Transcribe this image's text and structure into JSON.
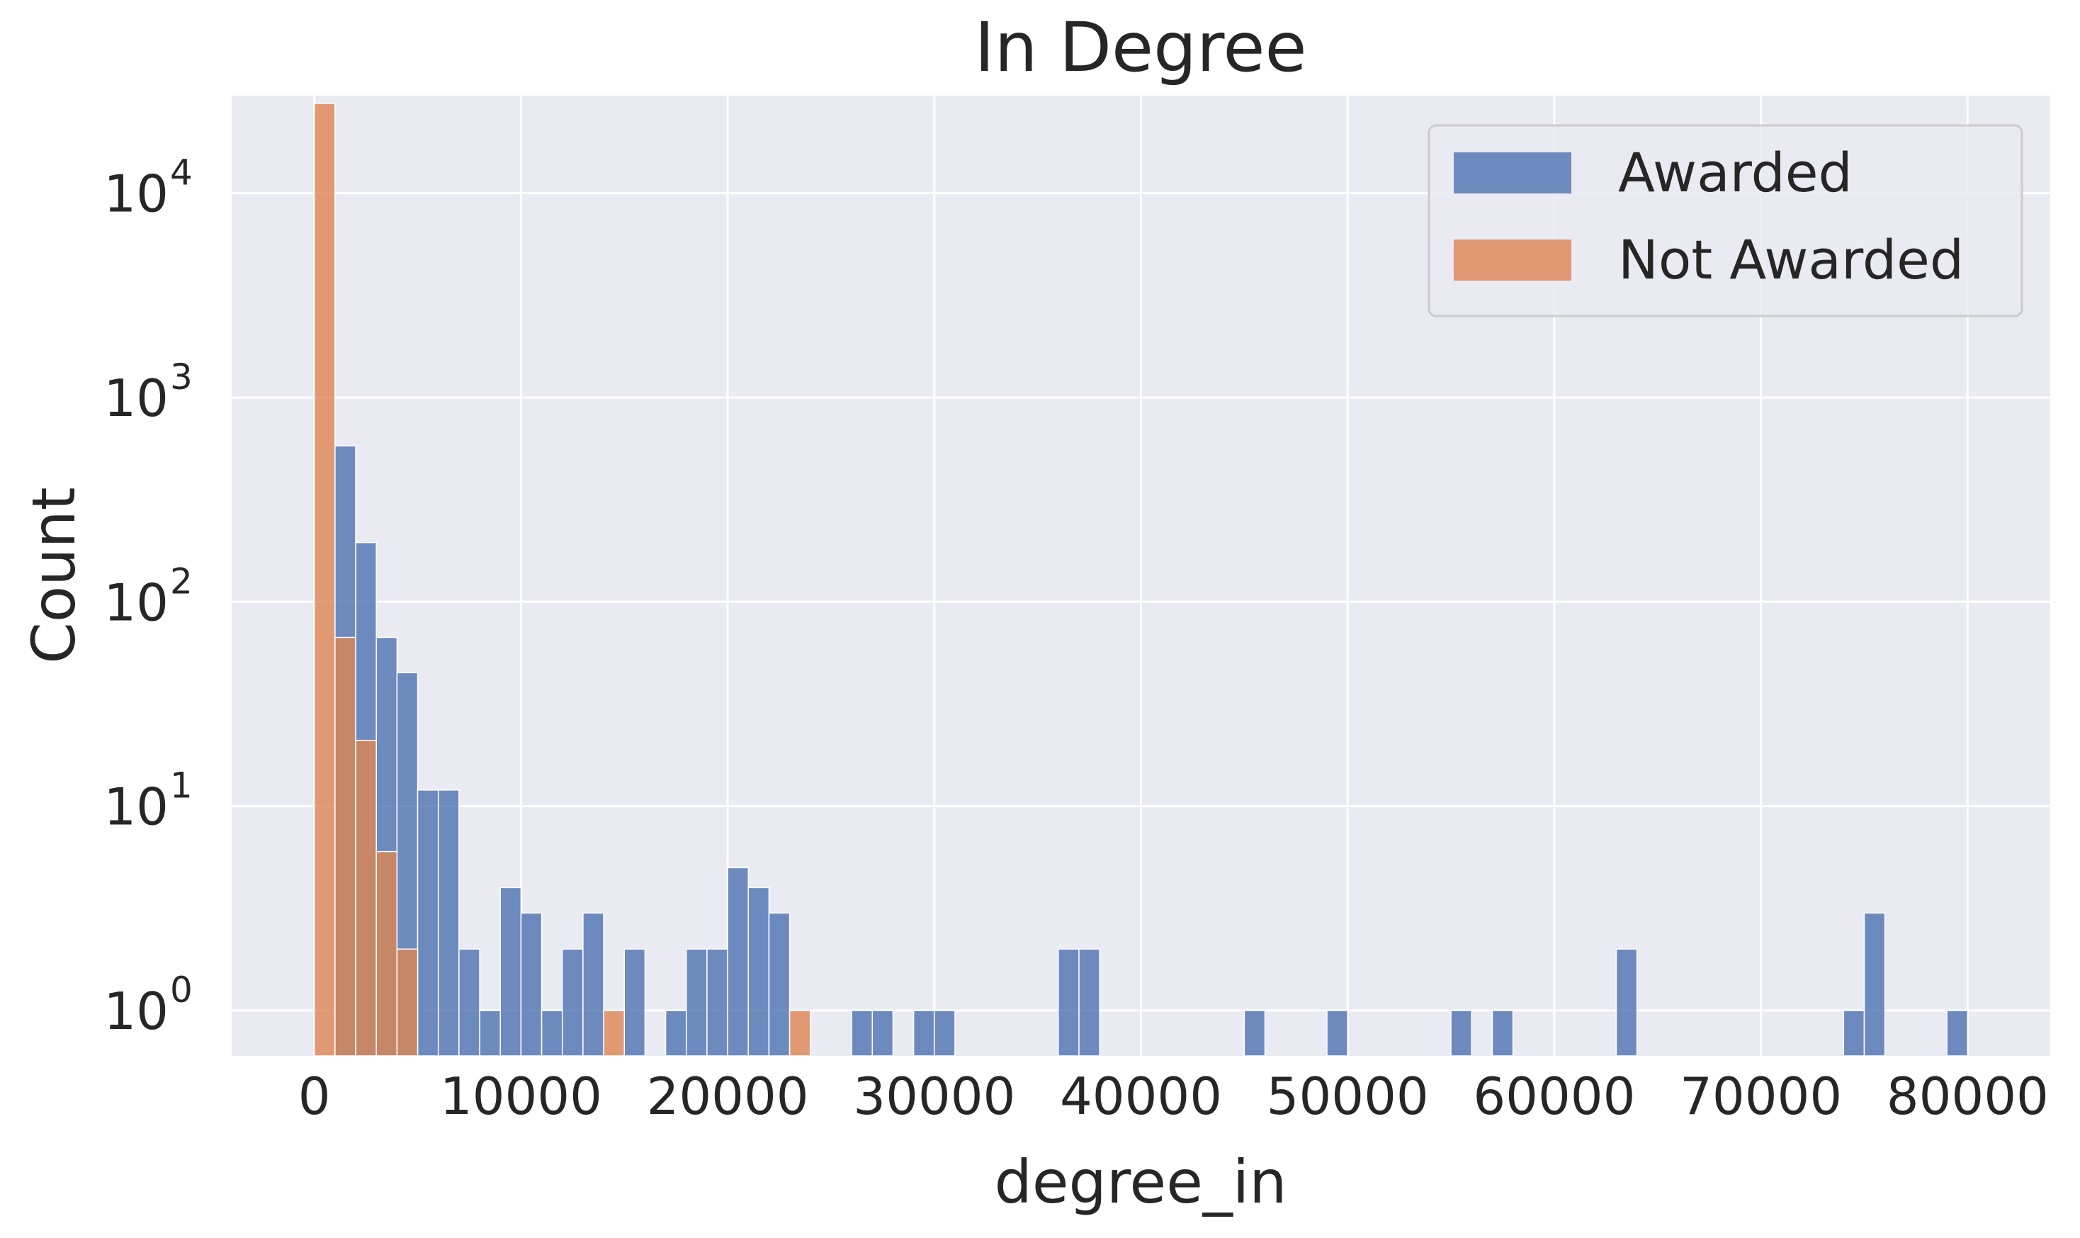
{
  "chart_data": {
    "type": "bar",
    "title": "In Degree",
    "xlabel": "degree_in",
    "ylabel": "Count",
    "yscale": "log",
    "ylim": [
      0.6,
      30000
    ],
    "xlim": [
      -4000,
      84000
    ],
    "xticks": [
      0,
      10000,
      20000,
      30000,
      40000,
      50000,
      60000,
      70000,
      80000
    ],
    "xtick_labels": [
      "0",
      "10000",
      "20000",
      "30000",
      "40000",
      "50000",
      "60000",
      "70000",
      "80000"
    ],
    "yticks": [
      1,
      10,
      100,
      1000,
      10000
    ],
    "ytick_labels": [
      {
        "base": "10",
        "exp": "0"
      },
      {
        "base": "10",
        "exp": "1"
      },
      {
        "base": "10",
        "exp": "2"
      },
      {
        "base": "10",
        "exp": "3"
      },
      {
        "base": "10",
        "exp": "4"
      }
    ],
    "grid": true,
    "legend": {
      "position": "top-right"
    },
    "bin_width": 1000,
    "series": [
      {
        "name": "Awarded",
        "color": "#4c72b0",
        "bars": [
          {
            "x": 1000,
            "count": 580
          },
          {
            "x": 2000,
            "count": 195
          },
          {
            "x": 3000,
            "count": 67
          },
          {
            "x": 4000,
            "count": 45
          },
          {
            "x": 5000,
            "count": 12
          },
          {
            "x": 6000,
            "count": 12
          },
          {
            "x": 7000,
            "count": 2
          },
          {
            "x": 8000,
            "count": 1
          },
          {
            "x": 9000,
            "count": 4
          },
          {
            "x": 10000,
            "count": 3
          },
          {
            "x": 11000,
            "count": 1
          },
          {
            "x": 12000,
            "count": 2
          },
          {
            "x": 13000,
            "count": 3
          },
          {
            "x": 15000,
            "count": 2
          },
          {
            "x": 17000,
            "count": 1
          },
          {
            "x": 18000,
            "count": 2
          },
          {
            "x": 19000,
            "count": 2
          },
          {
            "x": 20000,
            "count": 5
          },
          {
            "x": 21000,
            "count": 4
          },
          {
            "x": 22000,
            "count": 3
          },
          {
            "x": 26000,
            "count": 1
          },
          {
            "x": 27000,
            "count": 1
          },
          {
            "x": 29000,
            "count": 1
          },
          {
            "x": 30000,
            "count": 1
          },
          {
            "x": 36000,
            "count": 2
          },
          {
            "x": 37000,
            "count": 2
          },
          {
            "x": 45000,
            "count": 1
          },
          {
            "x": 49000,
            "count": 1
          },
          {
            "x": 55000,
            "count": 1
          },
          {
            "x": 57000,
            "count": 1
          },
          {
            "x": 63000,
            "count": 2
          },
          {
            "x": 74000,
            "count": 1
          },
          {
            "x": 75000,
            "count": 3
          },
          {
            "x": 79000,
            "count": 1
          }
        ]
      },
      {
        "name": "Not Awarded",
        "color": "#dd8452",
        "bars": [
          {
            "x": 0,
            "count": 27500
          },
          {
            "x": 1000,
            "count": 67
          },
          {
            "x": 2000,
            "count": 21
          },
          {
            "x": 3000,
            "count": 6
          },
          {
            "x": 4000,
            "count": 2
          },
          {
            "x": 14000,
            "count": 1
          },
          {
            "x": 23000,
            "count": 1
          }
        ]
      }
    ]
  },
  "colors": {
    "plot_background": "#eaeaf2",
    "grid": "#ffffff",
    "text": "#262626"
  }
}
